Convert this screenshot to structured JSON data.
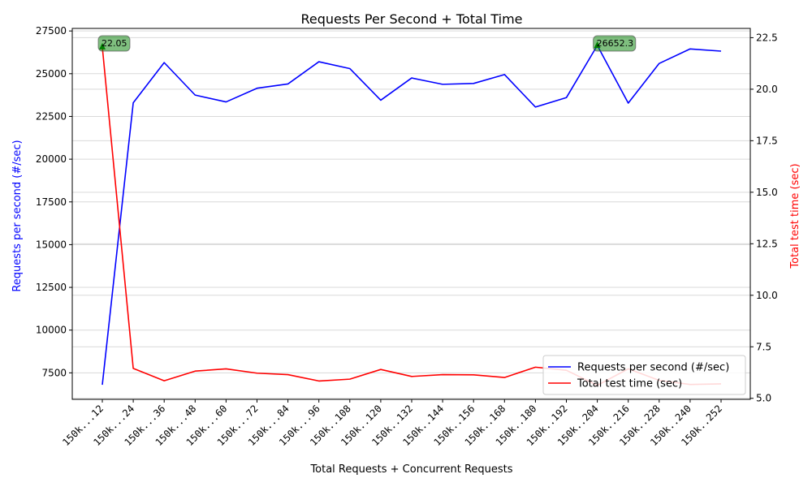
{
  "chart_data": {
    "type": "line",
    "title": "Requests Per Second + Total Time",
    "xlabel": "Total Requests + Concurrent Requests",
    "ylabel_left": "Requests per second (#/sec)",
    "ylabel_right": "Total test time (sec)",
    "categories": [
      "150k...12",
      "150k...24",
      "150k...36",
      "150k...48",
      "150k...60",
      "150k...72",
      "150k...84",
      "150k...96",
      "150k..108",
      "150k..120",
      "150k..132",
      "150k..144",
      "150k..156",
      "150k..168",
      "150k..180",
      "150k..192",
      "150k..204",
      "150k..216",
      "150k..228",
      "150k..240",
      "150k..252"
    ],
    "series": [
      {
        "name": "Requests per second (#/sec)",
        "axis": "left",
        "color": "#0000ff",
        "values": [
          6800,
          23300,
          25650,
          23750,
          23350,
          24150,
          24400,
          25700,
          25300,
          23450,
          24750,
          24380,
          24430,
          24950,
          23050,
          23600,
          26652.3,
          23280,
          25600,
          26450,
          26320
        ]
      },
      {
        "name": "Total test time (sec)",
        "axis": "right",
        "color": "#ff0000",
        "values": [
          22.05,
          6.45,
          5.85,
          6.32,
          6.43,
          6.22,
          6.15,
          5.84,
          5.93,
          6.4,
          6.06,
          6.15,
          6.14,
          6.01,
          6.51,
          6.36,
          5.63,
          6.43,
          5.87,
          5.67,
          5.7
        ]
      }
    ],
    "ylim_left": [
      5950,
      27650
    ],
    "ylim_right": [
      4.95,
      22.95
    ],
    "yticks_left": [
      7500,
      10000,
      12500,
      15000,
      17500,
      20000,
      22500,
      25000,
      27500
    ],
    "yticks_right": [
      5.0,
      7.5,
      10.0,
      12.5,
      15.0,
      17.5,
      20.0,
      22.5
    ],
    "grid": "horizontal",
    "legend_position": "lower-right",
    "annotations": [
      {
        "text": "22.05",
        "category_index": 0,
        "series": 1,
        "color": "#008000"
      },
      {
        "text": "26652.3",
        "category_index": 16,
        "series": 0,
        "color": "#008000"
      }
    ]
  }
}
